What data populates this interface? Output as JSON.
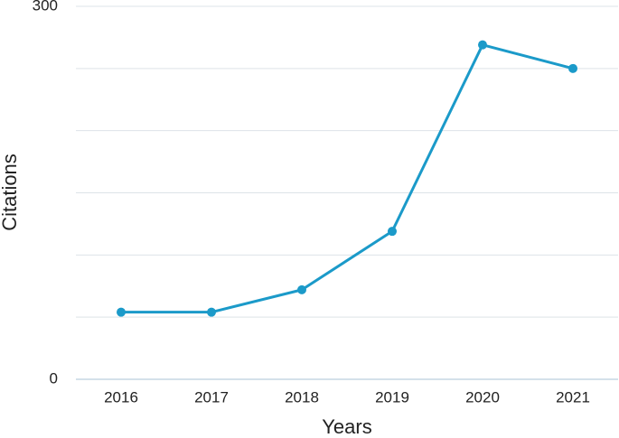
{
  "chart_data": {
    "type": "line",
    "categories": [
      "2016",
      "2017",
      "2018",
      "2019",
      "2020",
      "2021"
    ],
    "series": [
      {
        "name": "Citations",
        "color": "#1b9ac9",
        "values": [
          54,
          54,
          72,
          119,
          269,
          250
        ]
      }
    ],
    "ylim": [
      0,
      300
    ],
    "yticks": [
      0,
      300
    ],
    "ygrid": [
      0,
      50,
      100,
      150,
      200,
      250,
      300
    ],
    "ylabel": "Citations",
    "xlabel": "Years",
    "grid": true
  }
}
